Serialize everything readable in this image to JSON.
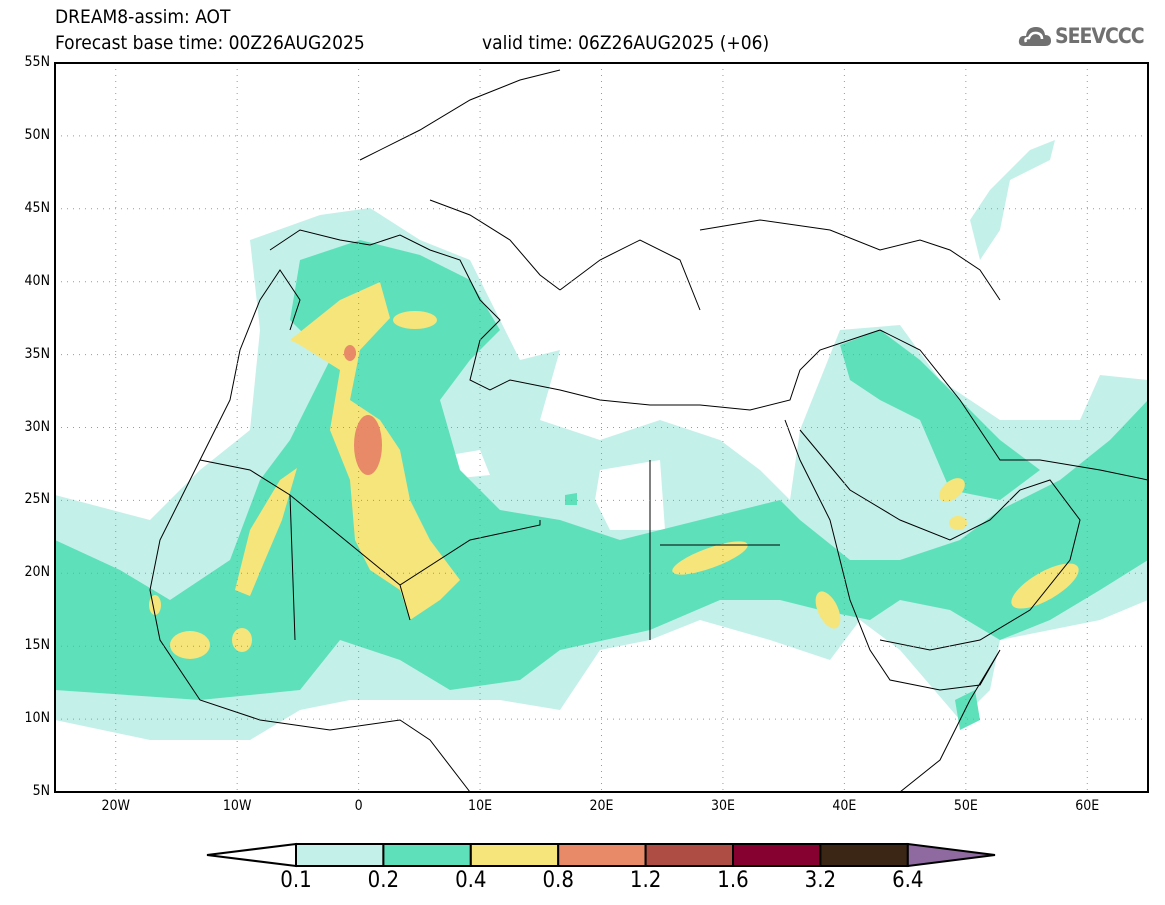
{
  "header": {
    "title": "DREAM8-assim: AOT",
    "base_time": "Forecast base time: 00Z26AUG2025",
    "valid_time": "valid time: 06Z26AUG2025 (+06)"
  },
  "logo": {
    "text": "SEEVCCC",
    "icon": "cloud-icon"
  },
  "axes": {
    "lat_labels": [
      "55N",
      "50N",
      "45N",
      "40N",
      "35N",
      "30N",
      "25N",
      "20N",
      "15N",
      "10N",
      "5N"
    ],
    "lat_values": [
      55,
      50,
      45,
      40,
      35,
      30,
      25,
      20,
      15,
      10,
      5
    ],
    "lon_labels": [
      "20W",
      "10W",
      "0",
      "10E",
      "20E",
      "30E",
      "40E",
      "50E",
      "60E"
    ],
    "lon_values": [
      -20,
      -10,
      0,
      10,
      20,
      30,
      40,
      50,
      60
    ],
    "lon_range": [
      -25,
      65
    ],
    "lat_range": [
      5,
      55
    ]
  },
  "colorbar": {
    "labels": [
      "0.1",
      "0.2",
      "0.4",
      "0.8",
      "1.2",
      "1.6",
      "3.2",
      "6.4"
    ],
    "colors": [
      "#ffffff",
      "#c4f0ea",
      "#5ee0bb",
      "#f5e57a",
      "#e88a68",
      "#ad4d43",
      "#860030",
      "#3b2616",
      "#8e6aa0"
    ]
  }
}
